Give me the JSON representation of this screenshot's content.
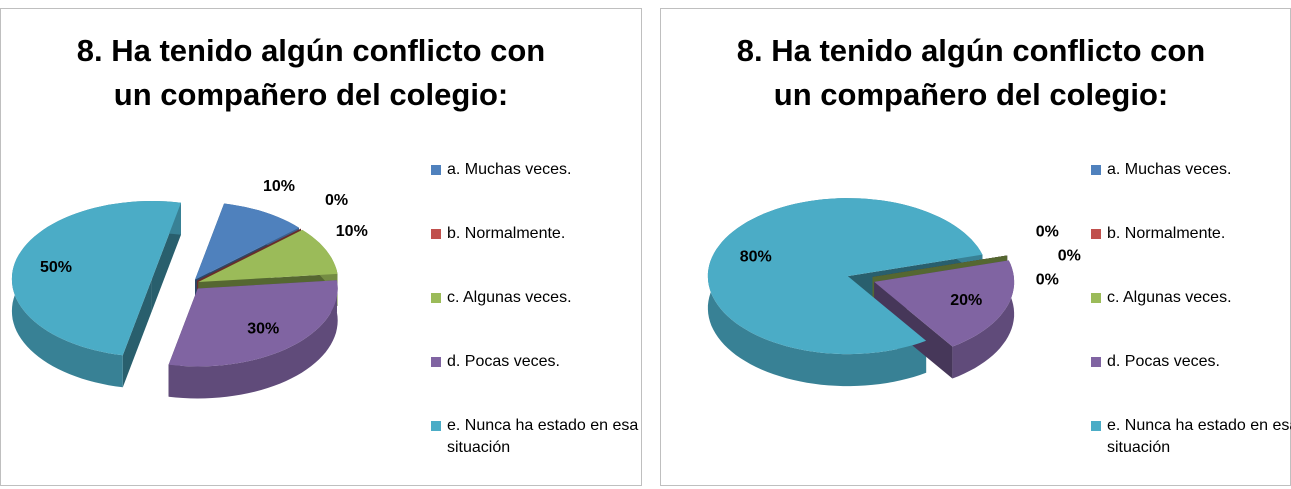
{
  "chart_data": [
    {
      "type": "pie",
      "title": "8.  Ha tenido algún conflicto con un compañero del colegio:",
      "categories": [
        "a.  Muchas veces.",
        "b.  Normalmente.",
        "c.  Algunas veces.",
        "d.  Pocas veces.",
        "e.  Nunca ha estado en esa situación"
      ],
      "values": [
        10,
        0,
        10,
        30,
        50
      ],
      "value_labels": [
        "10%",
        "0%",
        "10%",
        "30%",
        "50%"
      ],
      "colors": [
        "#4f81bd",
        "#c0504d",
        "#9bbb59",
        "#8064a2",
        "#4bacc6"
      ],
      "legend": "right"
    },
    {
      "type": "pie",
      "title": "8.  Ha tenido algún conflicto con un compañero del colegio:",
      "categories": [
        "a.  Muchas veces.",
        "b.  Normalmente.",
        "c.  Algunas veces.",
        "d.  Pocas veces.",
        "e.  Nunca ha estado en esa situación"
      ],
      "values": [
        0,
        0,
        0,
        20,
        80
      ],
      "value_labels": [
        "0%",
        "0%",
        "0%",
        "20%",
        "80%"
      ],
      "colors": [
        "#4f81bd",
        "#c0504d",
        "#9bbb59",
        "#8064a2",
        "#4bacc6"
      ],
      "legend": "right"
    }
  ]
}
